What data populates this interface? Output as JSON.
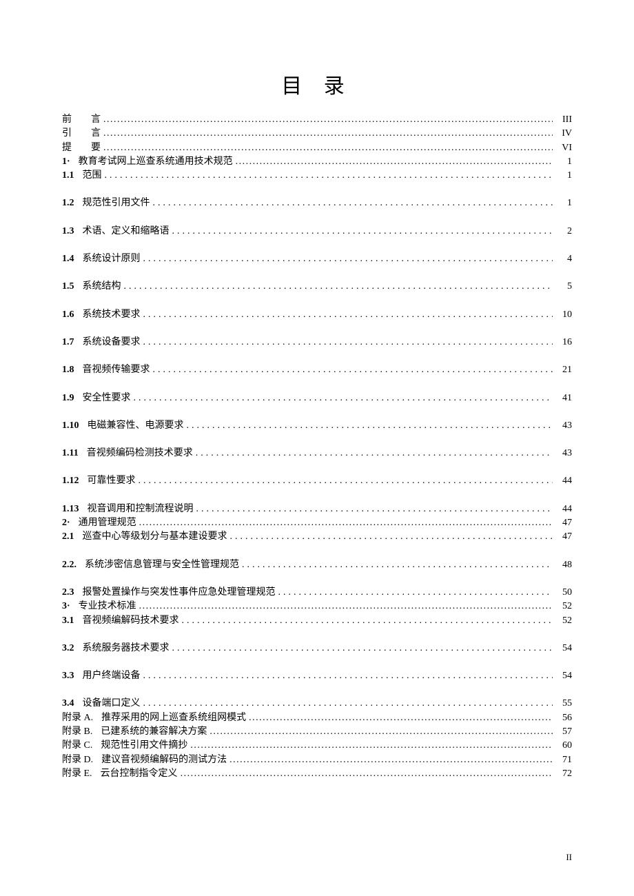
{
  "title": "目 录",
  "page_number_footer": "II",
  "dots_dense": "........................................................................................................................................................................................................",
  "dots_sparse": "................................................................................................................................",
  "entries": [
    {
      "num": "",
      "num_bold": false,
      "label": "前　　言",
      "label_spread": false,
      "page": "III",
      "leader": "dense",
      "spaced": false
    },
    {
      "num": "",
      "num_bold": false,
      "label": "引　　言",
      "label_spread": false,
      "page": "IV",
      "leader": "dense",
      "spaced": false
    },
    {
      "num": "",
      "num_bold": false,
      "label": "提　　要",
      "label_spread": false,
      "page": "VI",
      "leader": "dense",
      "spaced": false
    },
    {
      "num": "1·",
      "num_bold": true,
      "label": "教育考试网上巡查系统通用技术规范",
      "label_spread": false,
      "page": "1",
      "leader": "dense",
      "spaced": false
    },
    {
      "num": "1.1",
      "num_bold": true,
      "label": "范围",
      "label_spread": false,
      "page": "1",
      "leader": "sparse",
      "spaced": false
    },
    {
      "num": "1.2",
      "num_bold": true,
      "label": "规范性引用文件",
      "label_spread": false,
      "page": "1",
      "leader": "sparse",
      "spaced": true
    },
    {
      "num": "1.3",
      "num_bold": true,
      "label": "术语、定义和缩略语",
      "label_spread": false,
      "page": "2",
      "leader": "sparse",
      "spaced": true
    },
    {
      "num": "1.4",
      "num_bold": true,
      "label": "系统设计原则",
      "label_spread": false,
      "page": "4",
      "leader": "sparse",
      "spaced": true
    },
    {
      "num": "1.5",
      "num_bold": true,
      "label": "系统结构",
      "label_spread": false,
      "page": "5",
      "leader": "sparse",
      "spaced": true
    },
    {
      "num": "1.6",
      "num_bold": true,
      "label": "系统技术要求",
      "label_spread": false,
      "page": "10",
      "leader": "sparse",
      "spaced": true
    },
    {
      "num": "1.7",
      "num_bold": true,
      "label": "系统设备要求",
      "label_spread": false,
      "page": "16",
      "leader": "sparse",
      "spaced": true
    },
    {
      "num": "1.8",
      "num_bold": true,
      "label": "音视频传输要求",
      "label_spread": false,
      "page": "21",
      "leader": "sparse",
      "spaced": true
    },
    {
      "num": "1.9",
      "num_bold": true,
      "label": "安全性要求",
      "label_spread": false,
      "page": "41",
      "leader": "sparse",
      "spaced": true
    },
    {
      "num": "1.10",
      "num_bold": true,
      "label": "电磁兼容性、电源要求",
      "label_spread": false,
      "page": "43",
      "leader": "sparse",
      "spaced": true
    },
    {
      "num": "1.11",
      "num_bold": true,
      "label": "音视频编码检测技术要求",
      "label_spread": false,
      "page": "43",
      "leader": "sparse",
      "spaced": true
    },
    {
      "num": "1.12",
      "num_bold": true,
      "label": "可靠性要求",
      "label_spread": false,
      "page": "44",
      "leader": "sparse",
      "spaced": true
    },
    {
      "num": "1.13",
      "num_bold": true,
      "label": "视音调用和控制流程说明",
      "label_spread": false,
      "page": "44",
      "leader": "sparse",
      "spaced": true
    },
    {
      "num": "2·",
      "num_bold": true,
      "label": "通用管理规范",
      "label_spread": false,
      "page": "47",
      "leader": "dense",
      "spaced": false
    },
    {
      "num": "2.1",
      "num_bold": true,
      "label": "巡查中心等级划分与基本建设要求",
      "label_spread": false,
      "page": "47",
      "leader": "sparse",
      "spaced": false
    },
    {
      "num": "2.2.",
      "num_bold": true,
      "label": "系统涉密信息管理与安全性管理规范",
      "label_spread": false,
      "page": "48",
      "leader": "sparse",
      "spaced": true
    },
    {
      "num": "2.3",
      "num_bold": true,
      "label": "报警处置操作与突发性事件应急处理管理规范",
      "label_spread": false,
      "page": "50",
      "leader": "sparse",
      "spaced": true
    },
    {
      "num": "3·",
      "num_bold": true,
      "label": "专业技术标准",
      "label_spread": false,
      "page": "52",
      "leader": "dense",
      "spaced": false
    },
    {
      "num": "3.1",
      "num_bold": true,
      "label": "音视频编解码技术要求",
      "label_spread": false,
      "page": "52",
      "leader": "sparse",
      "spaced": false
    },
    {
      "num": "3.2",
      "num_bold": true,
      "label": "系统服务器技术要求",
      "label_spread": false,
      "page": "54",
      "leader": "sparse",
      "spaced": true
    },
    {
      "num": "3.3",
      "num_bold": true,
      "label": "用户终端设备",
      "label_spread": false,
      "page": "54",
      "leader": "sparse",
      "spaced": true
    },
    {
      "num": "3.4",
      "num_bold": true,
      "label": "设备端口定义",
      "label_spread": false,
      "page": "55",
      "leader": "sparse",
      "spaced": true
    },
    {
      "num": "附录 A.",
      "num_bold": false,
      "label": "推荐采用的网上巡查系统组网模式",
      "label_spread": false,
      "page": "56",
      "leader": "dense",
      "spaced": false
    },
    {
      "num": "附录 B.",
      "num_bold": false,
      "label": "已建系统的兼容解决方案",
      "label_spread": false,
      "page": "57",
      "leader": "dense",
      "spaced": false
    },
    {
      "num": "附录 C.",
      "num_bold": false,
      "label": "规范性引用文件摘抄",
      "label_spread": false,
      "page": "60",
      "leader": "dense",
      "spaced": false
    },
    {
      "num": "附录 D.",
      "num_bold": false,
      "label": "建议音视频编解码的测试方法",
      "label_spread": false,
      "page": "71",
      "leader": "dense",
      "spaced": false
    },
    {
      "num": "附录 E.",
      "num_bold": false,
      "label": "云台控制指令定义",
      "label_spread": false,
      "page": "72",
      "leader": "dense",
      "spaced": false
    }
  ]
}
